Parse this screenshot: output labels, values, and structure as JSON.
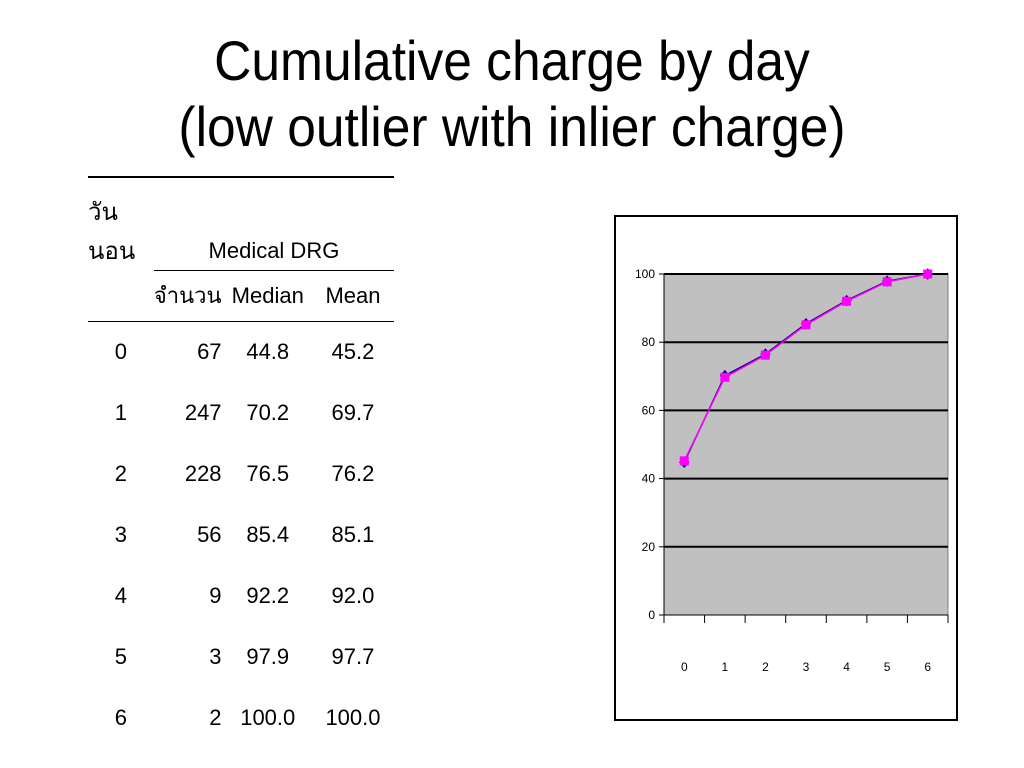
{
  "slide": {
    "title_line1": "Cumulative charge by day",
    "title_line2": "(low outlier with inlier charge)"
  },
  "table": {
    "stay_label": "วันนอน",
    "group_label": "Medical DRG",
    "count_label": "จำนวน",
    "median_label": "Median",
    "mean_label": "Mean",
    "rows": [
      {
        "day": "0",
        "count": "67",
        "median": "44.8",
        "mean": "45.2"
      },
      {
        "day": "1",
        "count": "247",
        "median": "70.2",
        "mean": "69.7"
      },
      {
        "day": "2",
        "count": "228",
        "median": "76.5",
        "mean": "76.2"
      },
      {
        "day": "3",
        "count": "56",
        "median": "85.4",
        "mean": "85.1"
      },
      {
        "day": "4",
        "count": "9",
        "median": "92.2",
        "mean": "92.0"
      },
      {
        "day": "5",
        "count": "3",
        "median": "97.9",
        "mean": "97.7"
      },
      {
        "day": "6",
        "count": "2",
        "median": "100.0",
        "mean": "100.0"
      }
    ]
  },
  "chart_data": {
    "type": "line",
    "categories": [
      "0",
      "1",
      "2",
      "3",
      "4",
      "5",
      "6"
    ],
    "series": [
      {
        "name": "",
        "values": [
          44.8,
          70.2,
          76.5,
          85.4,
          92.2,
          97.9,
          100.0
        ],
        "color": "#000080",
        "marker": "diamond"
      },
      {
        "name": "",
        "values": [
          45.2,
          69.7,
          76.2,
          85.1,
          92.0,
          97.7,
          100.0
        ],
        "color": "#ff00ff",
        "marker": "square"
      }
    ],
    "y_ticks": [
      0,
      20,
      40,
      60,
      80,
      100
    ],
    "ylim": [
      0,
      100
    ],
    "plot_background": "#c0c0c0",
    "grid": true,
    "title": "",
    "xlabel": "",
    "ylabel": ""
  }
}
